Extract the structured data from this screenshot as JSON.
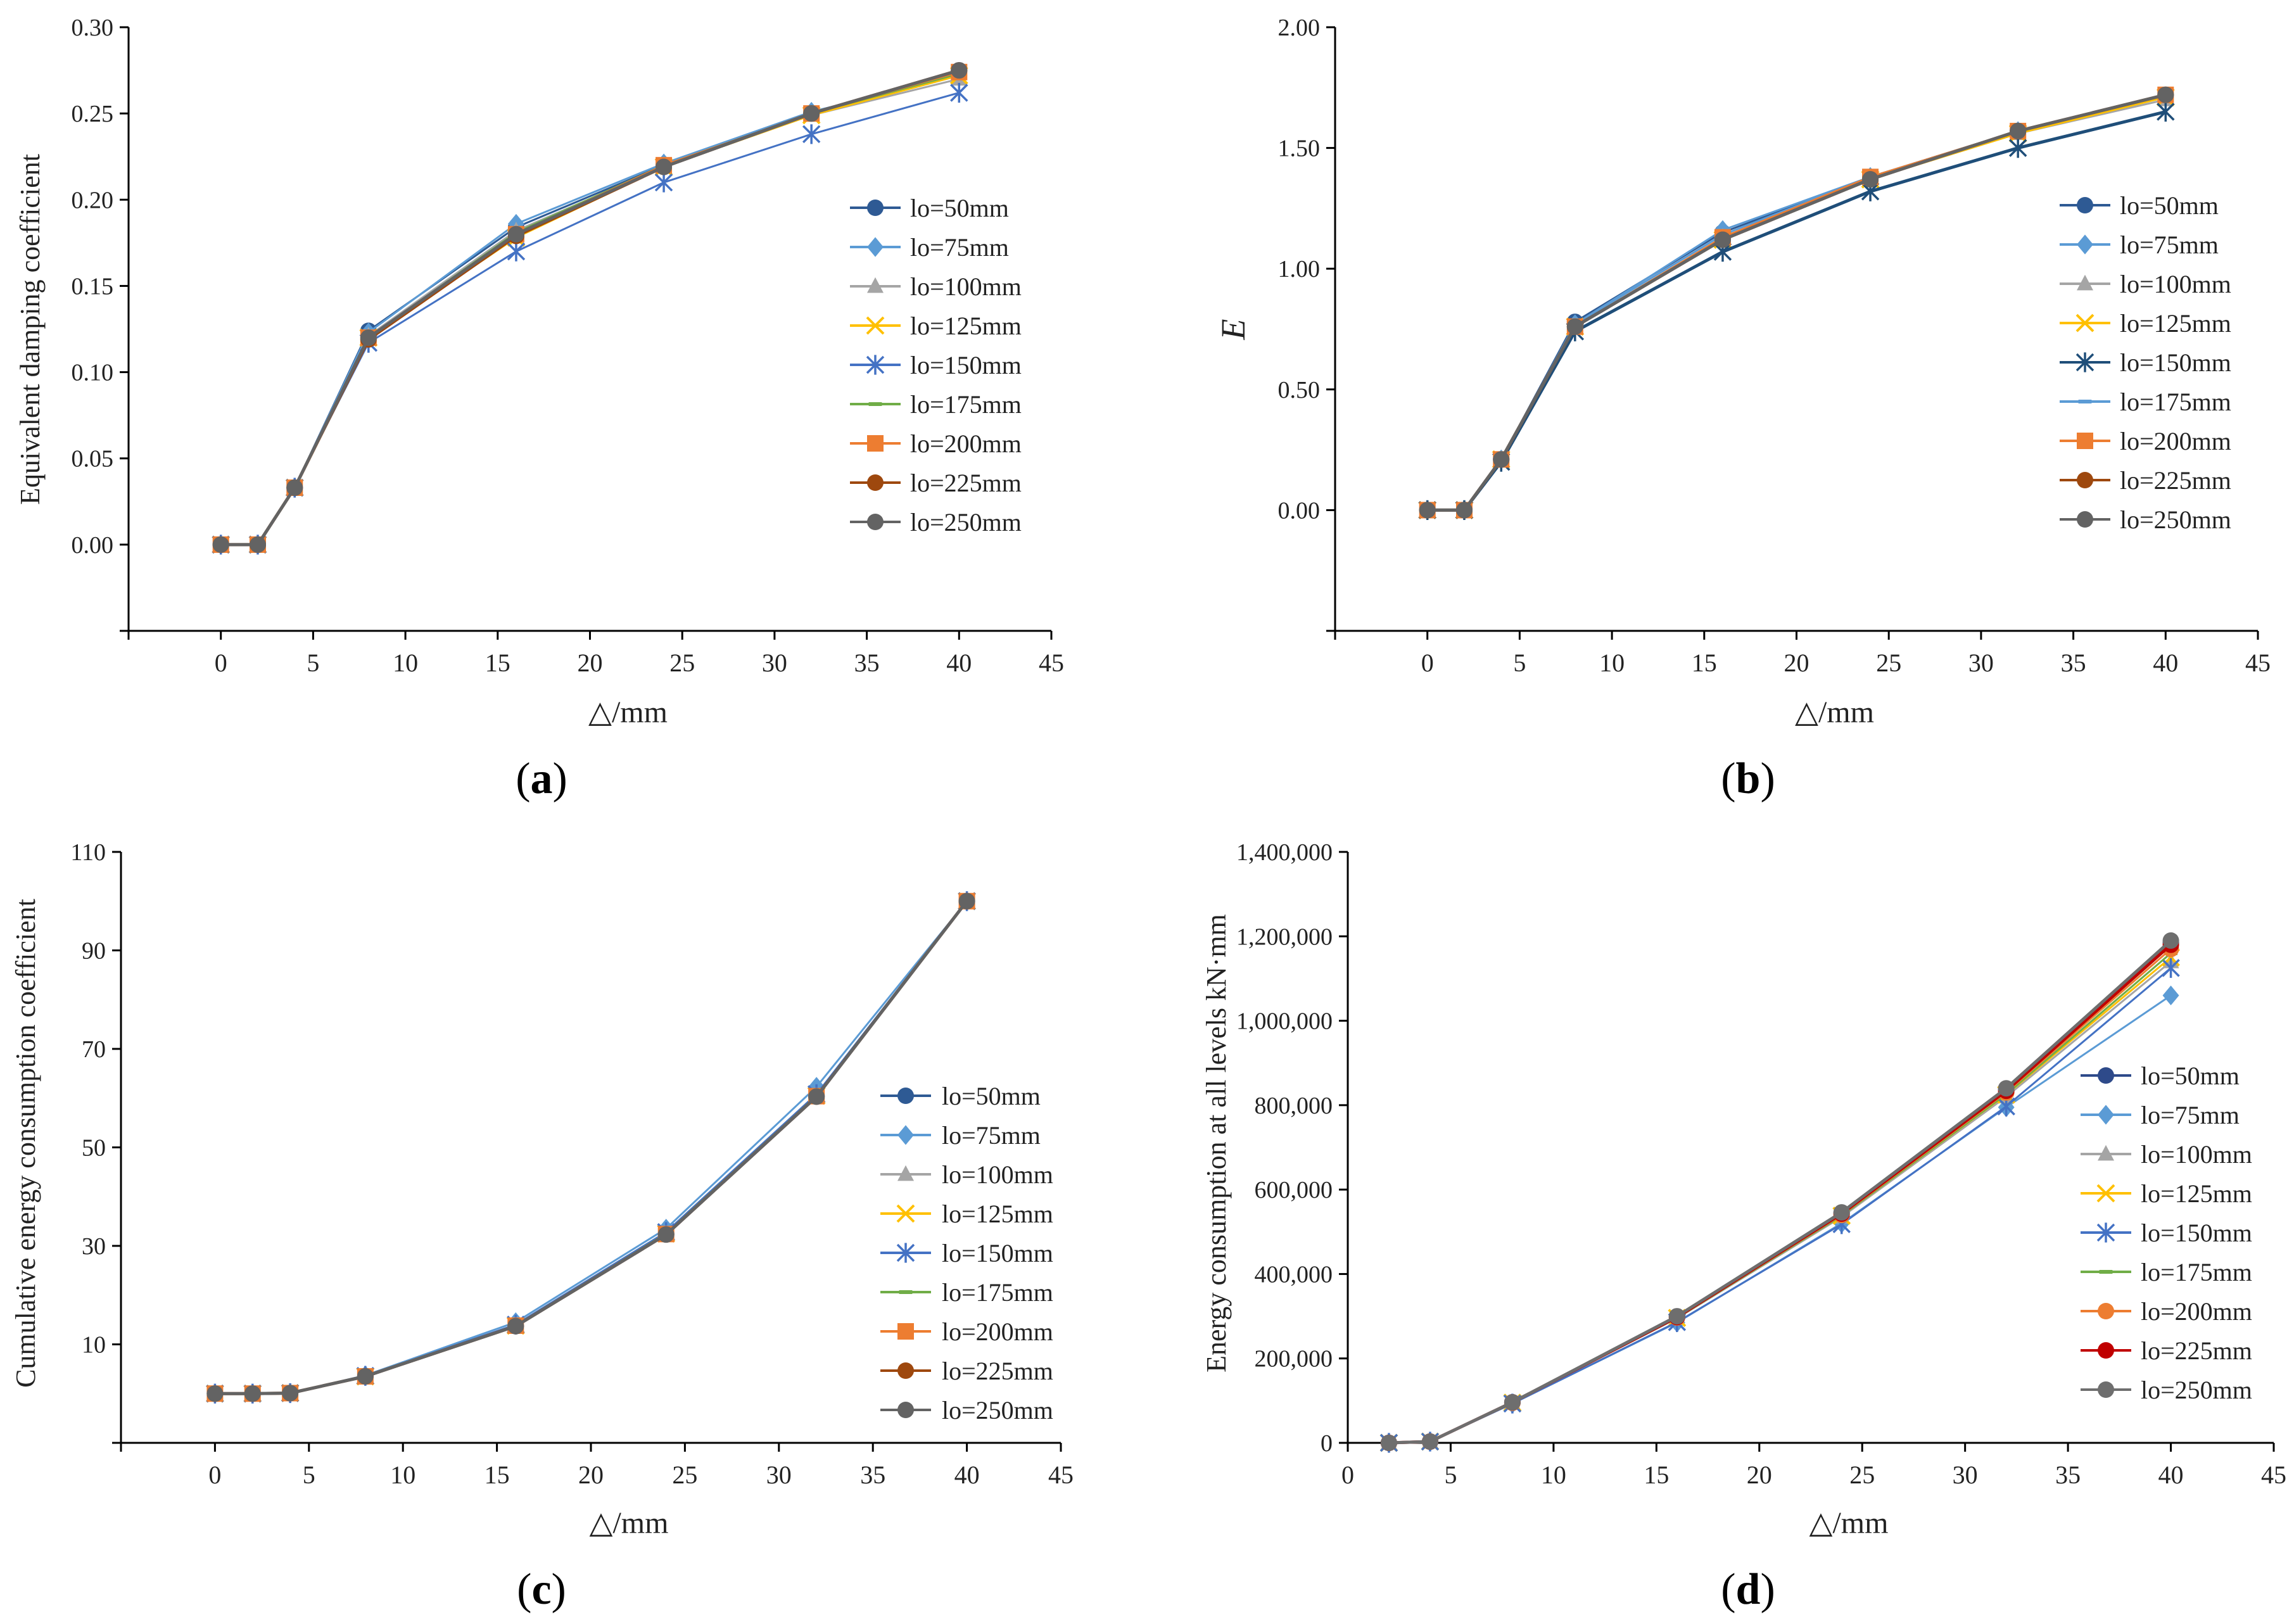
{
  "series_names": [
    "lo=50mm",
    "lo=75mm",
    "lo=100mm",
    "lo=125mm",
    "lo=150mm",
    "lo=175mm",
    "lo=200mm",
    "lo=225mm",
    "lo=250mm"
  ],
  "chart_data": [
    {
      "panel": "a",
      "caption": "a",
      "type": "line",
      "xlabel": "△/mm",
      "ylabel": "Equivalent damping coefficient",
      "xlim": [
        -5,
        45
      ],
      "ylim": [
        -0.05,
        0.3
      ],
      "xticks": [
        0,
        5,
        10,
        15,
        20,
        25,
        30,
        35,
        40,
        45
      ],
      "yticks": [
        "0.00",
        "0.05",
        "0.10",
        "0.15",
        "0.20",
        "0.25",
        "0.30"
      ],
      "legend": "right",
      "x": [
        0,
        2,
        4,
        8,
        16,
        24,
        32,
        40
      ],
      "series": [
        {
          "name": "lo=50mm",
          "color": "#2e5a94",
          "marker": "circle",
          "values": [
            0,
            0,
            0.033,
            0.124,
            0.184,
            0.22,
            0.25,
            0.275
          ]
        },
        {
          "name": "lo=75mm",
          "color": "#5b9bd5",
          "marker": "diamond",
          "values": [
            0,
            0,
            0.033,
            0.123,
            0.186,
            0.221,
            0.251,
            0.272
          ]
        },
        {
          "name": "lo=100mm",
          "color": "#a5a5a5",
          "marker": "triangle",
          "values": [
            0,
            0,
            0.033,
            0.121,
            0.182,
            0.219,
            0.249,
            0.27
          ]
        },
        {
          "name": "lo=125mm",
          "color": "#ffc000",
          "marker": "x",
          "values": [
            0,
            0,
            0.033,
            0.12,
            0.178,
            0.219,
            0.249,
            0.272
          ]
        },
        {
          "name": "lo=150mm",
          "color": "#4472c4",
          "marker": "star",
          "values": [
            0,
            0,
            0.033,
            0.117,
            0.17,
            0.21,
            0.238,
            0.262
          ]
        },
        {
          "name": "lo=175mm",
          "color": "#70ad47",
          "marker": "dash",
          "values": [
            0,
            0,
            0.033,
            0.12,
            0.181,
            0.22,
            0.25,
            0.273
          ]
        },
        {
          "name": "lo=200mm",
          "color": "#ed7d31",
          "marker": "square",
          "values": [
            0,
            0,
            0.033,
            0.12,
            0.18,
            0.22,
            0.25,
            0.274
          ]
        },
        {
          "name": "lo=225mm",
          "color": "#9e480e",
          "marker": "circle",
          "values": [
            0,
            0,
            0.033,
            0.119,
            0.179,
            0.219,
            0.25,
            0.275
          ]
        },
        {
          "name": "lo=250mm",
          "color": "#636363",
          "marker": "circle",
          "values": [
            0,
            0,
            0.033,
            0.12,
            0.18,
            0.219,
            0.25,
            0.275
          ]
        }
      ]
    },
    {
      "panel": "b",
      "caption": "b",
      "type": "line",
      "xlabel": "△/mm",
      "ylabel": "E",
      "xlim": [
        -5,
        45
      ],
      "ylim": [
        -0.5,
        2.0
      ],
      "xticks": [
        0,
        5,
        10,
        15,
        20,
        25,
        30,
        35,
        40,
        45
      ],
      "yticks": [
        "0.00",
        "0.50",
        "1.00",
        "1.50",
        "2.00"
      ],
      "legend": "right",
      "x": [
        0,
        2,
        4,
        8,
        16,
        24,
        32,
        40
      ],
      "series": [
        {
          "name": "lo=50mm",
          "color": "#2e5a94",
          "marker": "circle",
          "values": [
            0,
            0,
            0.21,
            0.78,
            1.15,
            1.38,
            1.57,
            1.72
          ]
        },
        {
          "name": "lo=75mm",
          "color": "#5b9bd5",
          "marker": "diamond",
          "values": [
            0,
            0,
            0.21,
            0.77,
            1.16,
            1.38,
            1.57,
            1.71
          ]
        },
        {
          "name": "lo=100mm",
          "color": "#a5a5a5",
          "marker": "triangle",
          "values": [
            0,
            0,
            0.21,
            0.76,
            1.13,
            1.37,
            1.56,
            1.7
          ]
        },
        {
          "name": "lo=125mm",
          "color": "#ffc000",
          "marker": "x",
          "values": [
            0,
            0,
            0.21,
            0.76,
            1.12,
            1.37,
            1.56,
            1.71
          ]
        },
        {
          "name": "lo=150mm",
          "color": "#1f4e79",
          "marker": "star",
          "values": [
            0,
            0,
            0.2,
            0.74,
            1.07,
            1.32,
            1.5,
            1.65
          ]
        },
        {
          "name": "lo=175mm",
          "color": "#5b9bd5",
          "marker": "dash",
          "values": [
            0,
            0,
            0.21,
            0.77,
            1.14,
            1.38,
            1.57,
            1.72
          ]
        },
        {
          "name": "lo=200mm",
          "color": "#ed7d31",
          "marker": "square",
          "values": [
            0,
            0,
            0.21,
            0.76,
            1.13,
            1.38,
            1.57,
            1.72
          ]
        },
        {
          "name": "lo=225mm",
          "color": "#9e480e",
          "marker": "circle",
          "values": [
            0,
            0,
            0.21,
            0.76,
            1.12,
            1.37,
            1.57,
            1.72
          ]
        },
        {
          "name": "lo=250mm",
          "color": "#636363",
          "marker": "circle",
          "values": [
            0,
            0,
            0.21,
            0.76,
            1.12,
            1.37,
            1.57,
            1.72
          ]
        }
      ]
    },
    {
      "panel": "c",
      "caption": "c",
      "type": "line",
      "xlabel": "△/mm",
      "ylabel": "Cumulative energy consumption coefficient",
      "xlim": [
        -5,
        45
      ],
      "ylim": [
        -10,
        110
      ],
      "xticks": [
        0,
        5,
        10,
        15,
        20,
        25,
        30,
        35,
        40,
        45
      ],
      "yticks": [
        "10",
        "30",
        "50",
        "70",
        "90",
        "110"
      ],
      "legend": "right",
      "x": [
        0,
        2,
        4,
        8,
        16,
        24,
        32,
        40
      ],
      "series": [
        {
          "name": "lo=50mm",
          "color": "#2e5a94",
          "marker": "circle",
          "values": [
            0,
            0,
            0.1,
            3.5,
            13.8,
            32.5,
            60.5,
            100
          ]
        },
        {
          "name": "lo=75mm",
          "color": "#5b9bd5",
          "marker": "diamond",
          "values": [
            0,
            0,
            0.1,
            3.7,
            14.5,
            33.5,
            62.3,
            100
          ]
        },
        {
          "name": "lo=100mm",
          "color": "#a5a5a5",
          "marker": "triangle",
          "values": [
            0,
            0,
            0.1,
            3.5,
            13.9,
            32.6,
            60.6,
            100
          ]
        },
        {
          "name": "lo=125mm",
          "color": "#ffc000",
          "marker": "x",
          "values": [
            0,
            0,
            0.1,
            3.5,
            13.8,
            32.5,
            60.5,
            100
          ]
        },
        {
          "name": "lo=150mm",
          "color": "#4472c4",
          "marker": "star",
          "values": [
            0,
            0,
            0.1,
            3.6,
            14.0,
            32.8,
            60.8,
            100
          ]
        },
        {
          "name": "lo=175mm",
          "color": "#70ad47",
          "marker": "dash",
          "values": [
            0,
            0,
            0.1,
            3.5,
            13.8,
            32.5,
            60.5,
            100
          ]
        },
        {
          "name": "lo=200mm",
          "color": "#ed7d31",
          "marker": "square",
          "values": [
            0,
            0,
            0.1,
            3.5,
            13.8,
            32.4,
            60.4,
            100
          ]
        },
        {
          "name": "lo=225mm",
          "color": "#9e480e",
          "marker": "circle",
          "values": [
            0,
            0,
            0.1,
            3.5,
            13.7,
            32.3,
            60.3,
            100
          ]
        },
        {
          "name": "lo=250mm",
          "color": "#636363",
          "marker": "circle",
          "values": [
            0,
            0,
            0.1,
            3.5,
            13.7,
            32.3,
            60.3,
            100
          ]
        }
      ]
    },
    {
      "panel": "d",
      "caption": "d",
      "type": "line",
      "xlabel": "△/mm",
      "ylabel": "Energy consumption at all levels kN·mm",
      "xlim": [
        0,
        45
      ],
      "ylim": [
        0,
        1400000
      ],
      "xticks": [
        0,
        5,
        10,
        15,
        20,
        25,
        30,
        35,
        40,
        45
      ],
      "yticks": [
        "0",
        "200,000",
        "400,000",
        "600,000",
        "800,000",
        "1,000,000",
        "1,200,000",
        "1,400,000"
      ],
      "legend": "right",
      "x": [
        2,
        4,
        8,
        16,
        24,
        32,
        40
      ],
      "series": [
        {
          "name": "lo=50mm",
          "color": "#2e4a8a",
          "marker": "circle",
          "values": [
            0,
            3000,
            96000,
            298000,
            545000,
            838000,
            1185000
          ]
        },
        {
          "name": "lo=75mm",
          "color": "#5b9bd5",
          "marker": "diamond",
          "values": [
            0,
            2800,
            93000,
            285000,
            520000,
            795000,
            1060000
          ]
        },
        {
          "name": "lo=100mm",
          "color": "#a5a5a5",
          "marker": "triangle",
          "values": [
            0,
            3000,
            95000,
            295000,
            535000,
            820000,
            1140000
          ]
        },
        {
          "name": "lo=125mm",
          "color": "#ffc000",
          "marker": "x",
          "values": [
            0,
            3000,
            95000,
            296000,
            538000,
            825000,
            1150000
          ]
        },
        {
          "name": "lo=150mm",
          "color": "#4472c4",
          "marker": "star",
          "values": [
            0,
            2900,
            93000,
            286000,
            518000,
            797000,
            1125000
          ]
        },
        {
          "name": "lo=175mm",
          "color": "#70ad47",
          "marker": "dash",
          "values": [
            0,
            3000,
            95000,
            296000,
            538000,
            826000,
            1160000
          ]
        },
        {
          "name": "lo=200mm",
          "color": "#ed7d31",
          "marker": "circle",
          "values": [
            0,
            3000,
            95000,
            297000,
            540000,
            830000,
            1170000
          ]
        },
        {
          "name": "lo=225mm",
          "color": "#c00000",
          "marker": "circle",
          "values": [
            0,
            3000,
            96000,
            298000,
            543000,
            834000,
            1180000
          ]
        },
        {
          "name": "lo=250mm",
          "color": "#6e6e6e",
          "marker": "circle",
          "values": [
            0,
            3000,
            96000,
            300000,
            546000,
            840000,
            1190000
          ]
        }
      ]
    }
  ]
}
